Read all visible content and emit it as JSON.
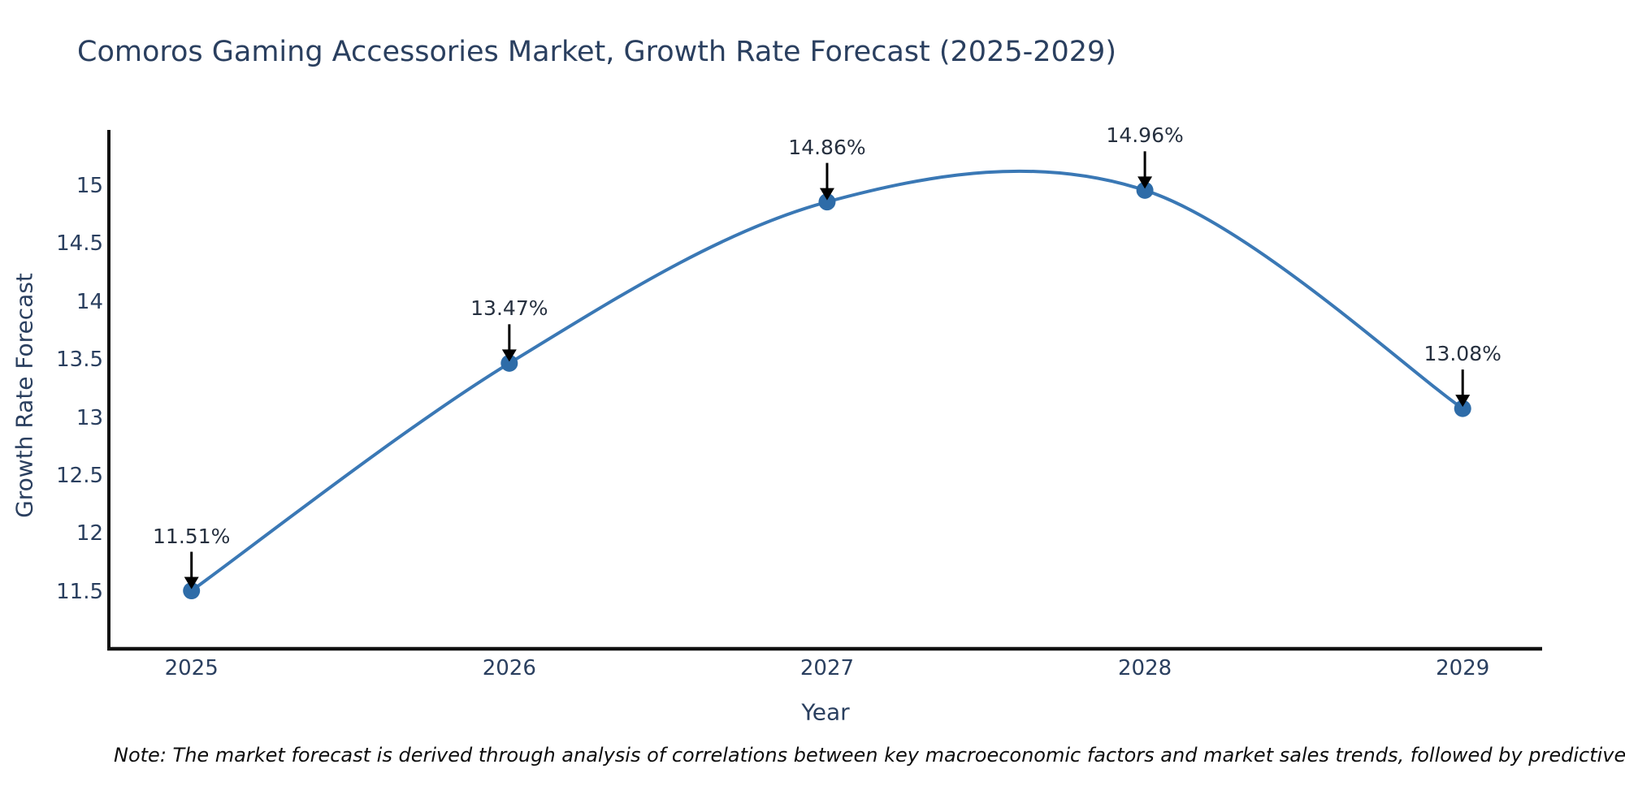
{
  "title": "Comoros Gaming Accessories Market, Growth Rate Forecast (2025-2029)",
  "note": "Note: The market forecast is derived through analysis of correlations between key macroeconomic factors and market sales trends, followed by predictive modeling to project future sal",
  "chart_data": {
    "type": "line",
    "title": "Comoros Gaming Accessories Market, Growth Rate Forecast (2025-2029)",
    "xlabel": "Year",
    "ylabel": "Growth Rate Forecast",
    "x": [
      2025,
      2026,
      2027,
      2028,
      2029
    ],
    "y": [
      11.51,
      13.47,
      14.86,
      14.96,
      13.08
    ],
    "point_labels": [
      "11.51%",
      "13.47%",
      "14.86%",
      "14.96%",
      "13.08%"
    ],
    "xtick_labels": [
      "2025",
      "2026",
      "2027",
      "2028",
      "2029"
    ],
    "ytick_values": [
      11.5,
      12,
      12.5,
      13,
      13.5,
      14,
      14.5,
      15
    ],
    "ytick_labels": [
      "11.5",
      "12",
      "12.5",
      "13",
      "13.5",
      "14",
      "14.5",
      "15"
    ],
    "xlim": [
      2024.74,
      2029.25
    ],
    "ylim": [
      11.01,
      15.48
    ],
    "line_shape": "spline",
    "grid": false,
    "legend": "none",
    "line_color": "#3a78b5",
    "marker_color": "#2e6ca8",
    "axis_color": "#111111",
    "text_color": "#2a3f5f",
    "arrow_color": "#000000"
  }
}
